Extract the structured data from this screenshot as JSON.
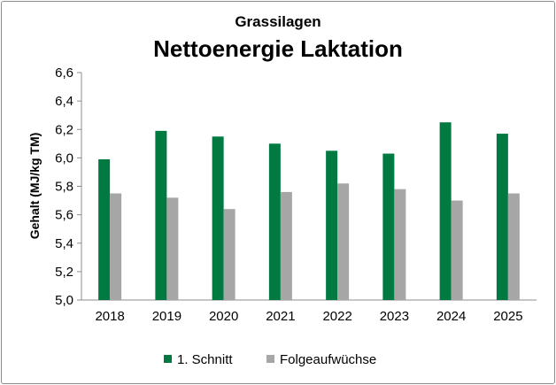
{
  "chart_data": {
    "type": "bar",
    "subtitle": "Grassilagen",
    "title": "Nettoenergie Laktation",
    "xlabel": "",
    "ylabel": "Gehalt (MJ/kg TM)",
    "ylim": [
      5.0,
      6.6
    ],
    "yticks": [
      "5,0",
      "5,2",
      "5,4",
      "5,6",
      "5,8",
      "6,0",
      "6,2",
      "6,4",
      "6,6"
    ],
    "grid": false,
    "legend_position": "bottom",
    "categories": [
      "2018",
      "2019",
      "2020",
      "2021",
      "2022",
      "2023",
      "2024",
      "2025"
    ],
    "series": [
      {
        "name": "1. Schnitt",
        "color": "#007a40",
        "values": [
          5.99,
          6.19,
          6.15,
          6.1,
          6.05,
          6.03,
          6.25,
          6.17
        ]
      },
      {
        "name": "Folgeaufwüchse",
        "color": "#a6a6a6",
        "values": [
          5.75,
          5.72,
          5.64,
          5.76,
          5.82,
          5.78,
          5.7,
          5.75
        ]
      }
    ]
  }
}
